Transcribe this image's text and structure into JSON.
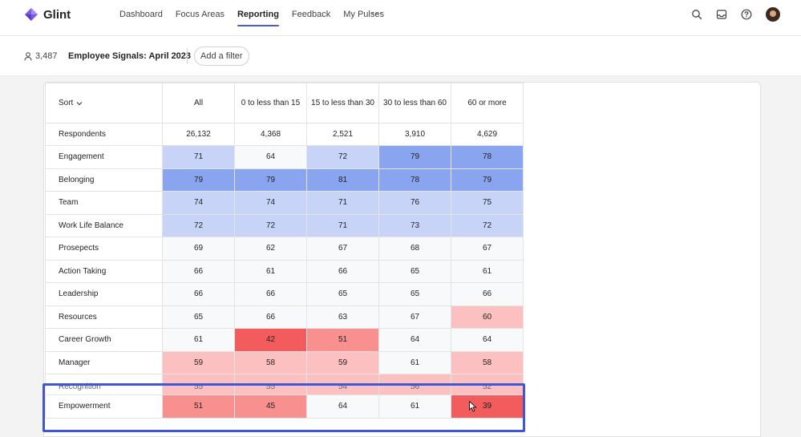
{
  "app": {
    "brand": "Glint",
    "nav": [
      {
        "label": "Dashboard",
        "active": false
      },
      {
        "label": "Focus Areas",
        "active": false
      },
      {
        "label": "Reporting",
        "active": true
      },
      {
        "label": "Feedback",
        "active": false
      },
      {
        "label": "My Pulses",
        "active": false
      }
    ],
    "more_label": "···",
    "icons": [
      "search-icon",
      "inbox-icon",
      "help-icon",
      "avatar"
    ]
  },
  "filter_bar": {
    "respondents": "3,487",
    "survey": "Employee Signals: April 2023",
    "add_filter": "Add a filter"
  },
  "table": {
    "sort_label": "Sort",
    "columns": [
      "All",
      "0 to less than 15",
      "15 to less than 30",
      "30 to less than 60",
      "60 or more"
    ],
    "respondents": {
      "label": "Respondents",
      "values": [
        "26,132",
        "4,368",
        "2,521",
        "3,910",
        "4,629"
      ]
    },
    "rows": [
      {
        "label": "Engagement",
        "values": [
          "71",
          "64",
          "72",
          "79",
          "78"
        ]
      },
      {
        "label": "Belonging",
        "values": [
          "79",
          "79",
          "81",
          "78",
          "79"
        ]
      },
      {
        "label": "Team",
        "values": [
          "74",
          "74",
          "71",
          "76",
          "75"
        ]
      },
      {
        "label": "Work Life Balance",
        "values": [
          "72",
          "72",
          "71",
          "73",
          "72"
        ]
      },
      {
        "label": "Prosepects",
        "values": [
          "69",
          "62",
          "67",
          "68",
          "67"
        ]
      },
      {
        "label": "Action Taking",
        "values": [
          "66",
          "61",
          "66",
          "65",
          "61"
        ]
      },
      {
        "label": "Leadership",
        "values": [
          "66",
          "66",
          "65",
          "65",
          "66"
        ]
      },
      {
        "label": "Resources",
        "values": [
          "65",
          "66",
          "63",
          "67",
          "60"
        ]
      },
      {
        "label": "Career Growth",
        "values": [
          "61",
          "42",
          "51",
          "64",
          "64"
        ]
      },
      {
        "label": "Manager",
        "values": [
          "59",
          "58",
          "59",
          "61",
          "58"
        ]
      },
      {
        "label": "Recognition",
        "values": [
          "55",
          "55",
          "54",
          "56",
          "52"
        ]
      },
      {
        "label": "Empowerment",
        "values": [
          "51",
          "45",
          "64",
          "61",
          "39"
        ]
      }
    ],
    "cell_colors": [
      [
        "#c7d4f7",
        "#f8f9fb",
        "#c7d4f7",
        "#8aa5f0",
        "#8aa5f0"
      ],
      [
        "#8aa5f0",
        "#8aa5f0",
        "#8aa5f0",
        "#8aa5f0",
        "#8aa5f0"
      ],
      [
        "#c7d4f7",
        "#c7d4f7",
        "#c7d4f7",
        "#c7d4f7",
        "#c7d4f7"
      ],
      [
        "#c7d4f7",
        "#c7d4f7",
        "#c7d4f7",
        "#c7d4f7",
        "#c7d4f7"
      ],
      [
        "#f8f9fb",
        "#f8f9fb",
        "#f8f9fb",
        "#f8f9fb",
        "#f8f9fb"
      ],
      [
        "#f8f9fb",
        "#f8f9fb",
        "#f8f9fb",
        "#f8f9fb",
        "#f8f9fb"
      ],
      [
        "#f8f9fb",
        "#f8f9fb",
        "#f8f9fb",
        "#f8f9fb",
        "#f8f9fb"
      ],
      [
        "#f8f9fb",
        "#f8f9fb",
        "#f8f9fb",
        "#f8f9fb",
        "#fcc0c0"
      ],
      [
        "#f8f9fb",
        "#f25c5c",
        "#f99090",
        "#f8f9fb",
        "#f8f9fb"
      ],
      [
        "#fcc0c0",
        "#fcc0c0",
        "#fcc0c0",
        "#f8f9fb",
        "#fcc0c0"
      ],
      [
        "#fcc0c0",
        "#fcc0c0",
        "#fcc0c0",
        "#fcc0c0",
        "#fcc0c0"
      ],
      [
        "#f99090",
        "#f99090",
        "#f8f9fb",
        "#f8f9fb",
        "#f25c5c"
      ]
    ],
    "partial_row": "Recognition"
  },
  "colors": {
    "accent": "#4a5ad4",
    "highlight": "#3f56d8"
  }
}
